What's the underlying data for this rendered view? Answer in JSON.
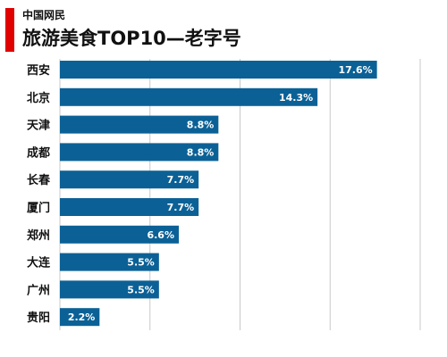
{
  "header": {
    "subtitle": "中国网民",
    "title": "旅游美食TOP10—老字号"
  },
  "colors": {
    "accent": "#e00000",
    "bar": "#0b6196",
    "grid": "#c8c8c8"
  },
  "chart_data": {
    "type": "bar",
    "orientation": "horizontal",
    "title": "旅游美食TOP10—老字号",
    "categories": [
      "西安",
      "北京",
      "天津",
      "成都",
      "长春",
      "厦门",
      "郑州",
      "大连",
      "广州",
      "贵阳"
    ],
    "values": [
      17.6,
      14.3,
      8.8,
      8.8,
      7.7,
      7.7,
      6.6,
      5.5,
      5.5,
      2.2
    ],
    "value_labels": [
      "17.6%",
      "14.3%",
      "8.8%",
      "8.8%",
      "7.7%",
      "7.7%",
      "6.6%",
      "5.5%",
      "5.5%",
      "2.2%"
    ],
    "xlim": [
      0,
      20
    ],
    "grid": true,
    "value_labels_inside_bars": true
  }
}
